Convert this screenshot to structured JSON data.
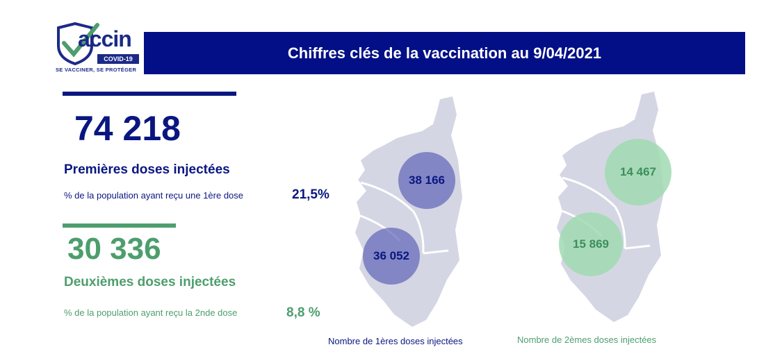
{
  "logo": {
    "word": "accin",
    "badge": "COVID-19",
    "tagline": "SE VACCINER, SE PROTÉGER",
    "colors": {
      "primary": "#1b2a87",
      "check": "#4d9e6d"
    }
  },
  "header": {
    "title": "Chiffres clés de la vaccination au 9/04/2021",
    "background": "#030f86"
  },
  "first_doses": {
    "total": "74 218",
    "label": "Premières doses injectées",
    "population_text": "% de la population ayant reçu une 1ère dose",
    "population_pct": "21,5%",
    "color": "#0a1680"
  },
  "second_doses": {
    "total": "30 336",
    "label": "Deuxièmes doses injectées",
    "population_text": "% de la population ayant reçu la 2nde dose",
    "population_pct": "8,8 %",
    "color": "#4d9e6d"
  },
  "maps": [
    {
      "north_value": "38 166",
      "south_value": "36 052",
      "caption": "Nombre de 1ères doses injectées",
      "circle_color": "#6267b8"
    },
    {
      "north_value": "14 467",
      "south_value": "15 869",
      "caption": "Nombre de 2èmes doses injectées",
      "circle_color": "#a0dbb2"
    }
  ]
}
